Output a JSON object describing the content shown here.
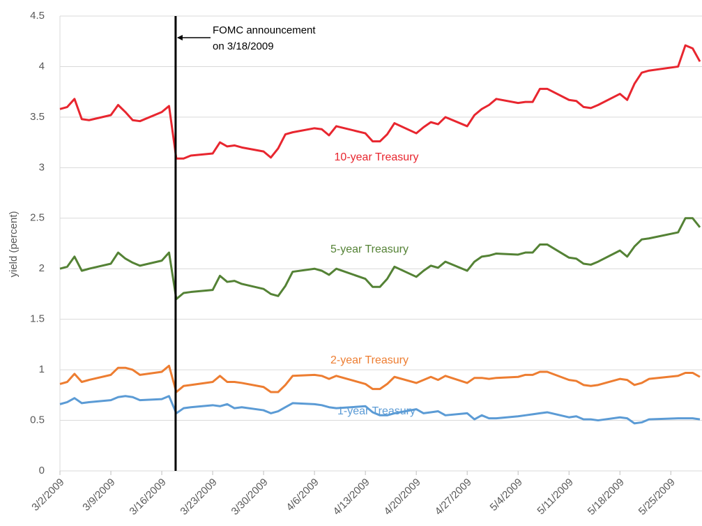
{
  "chart_data": {
    "type": "line",
    "y_label": "yield (percent)",
    "x": [
      "3/2/2009",
      "3/3/2009",
      "3/4/2009",
      "3/5/2009",
      "3/6/2009",
      "3/9/2009",
      "3/10/2009",
      "3/11/2009",
      "3/12/2009",
      "3/13/2009",
      "3/16/2009",
      "3/17/2009",
      "3/18/2009",
      "3/19/2009",
      "3/20/2009",
      "3/23/2009",
      "3/24/2009",
      "3/25/2009",
      "3/26/2009",
      "3/27/2009",
      "3/30/2009",
      "3/31/2009",
      "4/1/2009",
      "4/2/2009",
      "4/3/2009",
      "4/6/2009",
      "4/7/2009",
      "4/8/2009",
      "4/9/2009",
      "4/13/2009",
      "4/14/2009",
      "4/15/2009",
      "4/16/2009",
      "4/17/2009",
      "4/20/2009",
      "4/21/2009",
      "4/22/2009",
      "4/23/2009",
      "4/24/2009",
      "4/27/2009",
      "4/28/2009",
      "4/29/2009",
      "4/30/2009",
      "5/1/2009",
      "5/4/2009",
      "5/5/2009",
      "5/6/2009",
      "5/7/2009",
      "5/8/2009",
      "5/11/2009",
      "5/12/2009",
      "5/13/2009",
      "5/14/2009",
      "5/15/2009",
      "5/18/2009",
      "5/19/2009",
      "5/20/2009",
      "5/21/2009",
      "5/22/2009",
      "5/26/2009",
      "5/27/2009",
      "5/28/2009",
      "5/29/2009"
    ],
    "series": [
      {
        "name": "10-year Treasury",
        "color": "#e8262f",
        "values": [
          3.58,
          3.6,
          3.68,
          3.48,
          3.47,
          3.52,
          3.62,
          3.55,
          3.47,
          3.46,
          3.55,
          3.61,
          3.09,
          3.09,
          3.12,
          3.14,
          3.25,
          3.21,
          3.22,
          3.2,
          3.16,
          3.1,
          3.19,
          3.33,
          3.35,
          3.39,
          3.38,
          3.32,
          3.41,
          3.34,
          3.26,
          3.26,
          3.33,
          3.44,
          3.34,
          3.4,
          3.45,
          3.43,
          3.5,
          3.41,
          3.52,
          3.58,
          3.62,
          3.68,
          3.64,
          3.65,
          3.65,
          3.78,
          3.78,
          3.67,
          3.66,
          3.6,
          3.59,
          3.62,
          3.73,
          3.67,
          3.83,
          3.94,
          3.96,
          4.0,
          4.21,
          4.18,
          4.05
        ]
      },
      {
        "name": "5-year Treasury",
        "color": "#548235",
        "values": [
          2.0,
          2.02,
          2.12,
          1.98,
          2.0,
          2.05,
          2.16,
          2.1,
          2.06,
          2.03,
          2.08,
          2.16,
          1.7,
          1.76,
          1.77,
          1.79,
          1.93,
          1.87,
          1.88,
          1.85,
          1.8,
          1.75,
          1.73,
          1.83,
          1.97,
          2.0,
          1.98,
          1.94,
          2.0,
          1.9,
          1.82,
          1.82,
          1.9,
          2.02,
          1.92,
          1.98,
          2.03,
          2.01,
          2.07,
          1.98,
          2.07,
          2.12,
          2.13,
          2.15,
          2.14,
          2.16,
          2.16,
          2.24,
          2.24,
          2.11,
          2.1,
          2.05,
          2.04,
          2.07,
          2.18,
          2.12,
          2.22,
          2.29,
          2.3,
          2.36,
          2.5,
          2.5,
          2.41
        ]
      },
      {
        "name": "2-year Treasury",
        "color": "#ed7d31",
        "values": [
          0.86,
          0.88,
          0.96,
          0.88,
          0.9,
          0.95,
          1.02,
          1.02,
          1.0,
          0.95,
          0.98,
          1.04,
          0.78,
          0.84,
          0.85,
          0.88,
          0.94,
          0.88,
          0.88,
          0.87,
          0.83,
          0.78,
          0.78,
          0.85,
          0.94,
          0.95,
          0.94,
          0.91,
          0.94,
          0.86,
          0.81,
          0.81,
          0.86,
          0.93,
          0.87,
          0.9,
          0.93,
          0.9,
          0.94,
          0.87,
          0.92,
          0.92,
          0.91,
          0.92,
          0.93,
          0.95,
          0.95,
          0.98,
          0.98,
          0.9,
          0.89,
          0.85,
          0.84,
          0.85,
          0.91,
          0.9,
          0.85,
          0.87,
          0.91,
          0.94,
          0.97,
          0.97,
          0.93
        ]
      },
      {
        "name": "1-year Treasury",
        "color": "#5b9bd5",
        "values": [
          0.66,
          0.68,
          0.72,
          0.67,
          0.68,
          0.7,
          0.73,
          0.74,
          0.73,
          0.7,
          0.71,
          0.74,
          0.57,
          0.62,
          0.63,
          0.65,
          0.64,
          0.66,
          0.62,
          0.63,
          0.6,
          0.57,
          0.59,
          0.63,
          0.67,
          0.66,
          0.65,
          0.63,
          0.62,
          0.64,
          0.58,
          0.55,
          0.55,
          0.57,
          0.61,
          0.57,
          0.58,
          0.59,
          0.55,
          0.57,
          0.51,
          0.55,
          0.52,
          0.52,
          0.54,
          0.55,
          0.56,
          0.57,
          0.58,
          0.53,
          0.54,
          0.51,
          0.51,
          0.5,
          0.53,
          0.52,
          0.47,
          0.48,
          0.51,
          0.52,
          0.52,
          0.52,
          0.51
        ]
      }
    ],
    "xlim": [
      "3/2/2009",
      "5/29/2009"
    ],
    "xticks": [
      "3/2/2009",
      "3/9/2009",
      "3/16/2009",
      "3/23/2009",
      "3/30/2009",
      "4/6/2009",
      "4/13/2009",
      "4/20/2009",
      "4/27/2009",
      "5/4/2009",
      "5/11/2009",
      "5/18/2009",
      "5/25/2009"
    ],
    "ylim": [
      0,
      4.5
    ],
    "yticks": [
      0,
      0.5,
      1,
      1.5,
      2,
      2.5,
      3,
      3.5,
      4,
      4.5
    ],
    "grid": true,
    "annotation": {
      "x": "3/18/2009",
      "lines": [
        "FOMC announcement",
        "on 3/18/2009"
      ]
    }
  }
}
